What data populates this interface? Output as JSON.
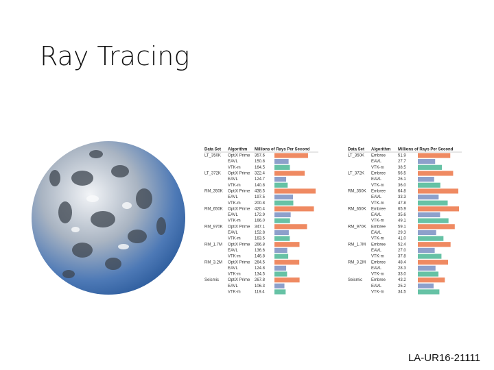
{
  "title": "Ray Tracing",
  "footer": "LA-UR16-21111",
  "tables": [
    {
      "headers": [
        "Data Set",
        "Algorithm",
        "Millions of Rays Per Second"
      ],
      "bar_colors": [
        "#ef8a62",
        "#8da0cb",
        "#66c2a5"
      ],
      "groups": [
        {
          "dataset": "LT_350K",
          "rows": [
            {
              "algorithm": "OptiX Prime",
              "value": "357.6"
            },
            {
              "algorithm": "EAVL",
              "value": "150.8"
            },
            {
              "algorithm": "VTK-m",
              "value": "164.5"
            }
          ]
        },
        {
          "dataset": "LT_372K",
          "rows": [
            {
              "algorithm": "OptiX Prime",
              "value": "322.4"
            },
            {
              "algorithm": "EAVL",
              "value": "124.7"
            },
            {
              "algorithm": "VTK-m",
              "value": "140.8"
            }
          ]
        },
        {
          "dataset": "RM_350K",
          "rows": [
            {
              "algorithm": "OptiX Prime",
              "value": "438.5"
            },
            {
              "algorithm": "EAVL",
              "value": "197.5"
            },
            {
              "algorithm": "VTK-m",
              "value": "200.8"
            }
          ]
        },
        {
          "dataset": "RM_650K",
          "rows": [
            {
              "algorithm": "OptiX Prime",
              "value": "420.4"
            },
            {
              "algorithm": "EAVL",
              "value": "172.9"
            },
            {
              "algorithm": "VTK-m",
              "value": "166.0"
            }
          ]
        },
        {
          "dataset": "RM_970K",
          "rows": [
            {
              "algorithm": "OptiX Prime",
              "value": "347.1"
            },
            {
              "algorithm": "EAVL",
              "value": "152.8"
            },
            {
              "algorithm": "VTK-m",
              "value": "163.5"
            }
          ]
        },
        {
          "dataset": "RM_1.7M",
          "rows": [
            {
              "algorithm": "OptiX Prime",
              "value": "266.8"
            },
            {
              "algorithm": "EAVL",
              "value": "136.6"
            },
            {
              "algorithm": "VTK-m",
              "value": "146.8"
            }
          ]
        },
        {
          "dataset": "RM_3.2M",
          "rows": [
            {
              "algorithm": "OptiX Prime",
              "value": "264.5"
            },
            {
              "algorithm": "EAVL",
              "value": "124.8"
            },
            {
              "algorithm": "VTK-m",
              "value": "134.5"
            }
          ]
        },
        {
          "dataset": "Seismic",
          "rows": [
            {
              "algorithm": "OptiX Prime",
              "value": "267.8"
            },
            {
              "algorithm": "EAVL",
              "value": "106.3"
            },
            {
              "algorithm": "VTK-m",
              "value": "119.4"
            }
          ]
        }
      ]
    },
    {
      "headers": [
        "Data Set",
        "Algorithm",
        "Millions of Rays Per Second"
      ],
      "bar_colors": [
        "#ef8a62",
        "#8da0cb",
        "#66c2a5"
      ],
      "groups": [
        {
          "dataset": "LT_350K",
          "rows": [
            {
              "algorithm": "Embree",
              "value": "51.9"
            },
            {
              "algorithm": "EAVL",
              "value": "27.7"
            },
            {
              "algorithm": "VTK-m",
              "value": "38.5"
            }
          ]
        },
        {
          "dataset": "LT_372K",
          "rows": [
            {
              "algorithm": "Embree",
              "value": "56.5"
            },
            {
              "algorithm": "EAVL",
              "value": "26.1"
            },
            {
              "algorithm": "VTK-m",
              "value": "36.0"
            }
          ]
        },
        {
          "dataset": "RM_350K",
          "rows": [
            {
              "algorithm": "Embree",
              "value": "64.8"
            },
            {
              "algorithm": "EAVL",
              "value": "33.3"
            },
            {
              "algorithm": "VTK-m",
              "value": "47.8"
            }
          ]
        },
        {
          "dataset": "RM_650K",
          "rows": [
            {
              "algorithm": "Embree",
              "value": "65.9"
            },
            {
              "algorithm": "EAVL",
              "value": "35.6"
            },
            {
              "algorithm": "VTK-m",
              "value": "49.1"
            }
          ]
        },
        {
          "dataset": "RM_970K",
          "rows": [
            {
              "algorithm": "Embree",
              "value": "59.1"
            },
            {
              "algorithm": "EAVL",
              "value": "29.3"
            },
            {
              "algorithm": "VTK-m",
              "value": "41.0"
            }
          ]
        },
        {
          "dataset": "RM_1.7M",
          "rows": [
            {
              "algorithm": "Embree",
              "value": "52.4"
            },
            {
              "algorithm": "EAVL",
              "value": "27.0"
            },
            {
              "algorithm": "VTK-m",
              "value": "37.8"
            }
          ]
        },
        {
          "dataset": "RM_3.2M",
          "rows": [
            {
              "algorithm": "Embree",
              "value": "48.4"
            },
            {
              "algorithm": "EAVL",
              "value": "28.3"
            },
            {
              "algorithm": "VTK-m",
              "value": "33.0"
            }
          ]
        },
        {
          "dataset": "Seismic",
          "rows": [
            {
              "algorithm": "Embree",
              "value": "43.2"
            },
            {
              "algorithm": "EAVL",
              "value": "25.2"
            },
            {
              "algorithm": "VTK-m",
              "value": "34.5"
            }
          ]
        }
      ]
    }
  ]
}
